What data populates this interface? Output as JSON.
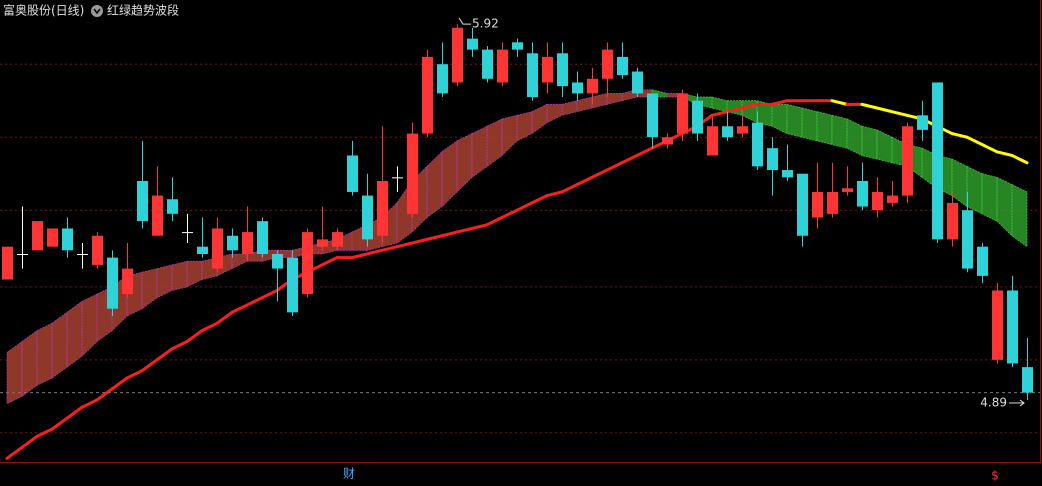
{
  "chart_data": {
    "type": "candlestick",
    "title": "富奥股份(日线)",
    "indicator": "红绿趋势波段",
    "event_marks": [
      "财",
      "$"
    ],
    "ylim": [
      4.72,
      5.975
    ],
    "grid_lines": [
      5.81,
      5.61,
      5.41,
      5.2,
      5.0,
      4.8
    ],
    "grid_color": "#7a1414",
    "up_color": "#ff3434",
    "down_color": "#2fd2d6",
    "flat_color": "#ffffff",
    "open": [
      5.22,
      5.29,
      5.3,
      5.31,
      5.36,
      5.29,
      5.26,
      5.28,
      5.18,
      5.49,
      5.34,
      5.44,
      5.35,
      5.31,
      5.25,
      5.34,
      5.29,
      5.38,
      5.29,
      5.28,
      5.18,
      5.31,
      5.31,
      5.56,
      5.45,
      5.34,
      5.5,
      5.4,
      5.62,
      5.81,
      5.76,
      5.88,
      5.85,
      5.76,
      5.87,
      5.84,
      5.76,
      5.84,
      5.76,
      5.73,
      5.77,
      5.83,
      5.79,
      5.73,
      5.59,
      5.62,
      5.71,
      5.56,
      5.64,
      5.62,
      5.65,
      5.58,
      5.52,
      5.51,
      5.39,
      5.4,
      5.46,
      5.49,
      5.41,
      5.43,
      5.45,
      5.67,
      5.76,
      5.33,
      5.41,
      5.31,
      5.0,
      5.19,
      4.98
    ],
    "high": [
      5.31,
      5.42,
      5.38,
      5.36,
      5.39,
      5.32,
      5.35,
      5.3,
      5.32,
      5.6,
      5.53,
      5.5,
      5.4,
      5.39,
      5.39,
      5.36,
      5.42,
      5.39,
      5.3,
      5.3,
      5.36,
      5.42,
      5.36,
      5.6,
      5.51,
      5.64,
      5.53,
      5.65,
      5.85,
      5.87,
      5.92,
      5.91,
      5.86,
      5.87,
      5.88,
      5.87,
      5.87,
      5.87,
      5.79,
      5.8,
      5.87,
      5.87,
      5.8,
      5.73,
      5.62,
      5.74,
      5.73,
      5.67,
      5.68,
      5.68,
      5.68,
      5.61,
      5.59,
      5.51,
      5.54,
      5.54,
      5.53,
      5.54,
      5.5,
      5.49,
      5.65,
      5.71,
      5.76,
      5.46,
      5.46,
      5.32,
      5.21,
      5.23,
      5.06
    ],
    "low": [
      5.22,
      5.25,
      5.3,
      5.31,
      5.28,
      5.25,
      5.25,
      5.12,
      5.17,
      5.36,
      5.34,
      5.38,
      5.32,
      5.28,
      5.24,
      5.28,
      5.27,
      5.28,
      5.16,
      5.12,
      5.17,
      5.3,
      5.3,
      5.45,
      5.31,
      5.32,
      5.46,
      5.39,
      5.61,
      5.72,
      5.75,
      5.83,
      5.76,
      5.75,
      5.83,
      5.71,
      5.73,
      5.72,
      5.71,
      5.7,
      5.72,
      5.77,
      5.72,
      5.58,
      5.58,
      5.6,
      5.6,
      5.56,
      5.6,
      5.61,
      5.52,
      5.45,
      5.49,
      5.31,
      5.36,
      5.39,
      5.45,
      5.41,
      5.39,
      5.42,
      5.43,
      5.6,
      5.32,
      5.31,
      5.24,
      5.21,
      4.99,
      4.98,
      4.89
    ],
    "close": [
      5.31,
      5.29,
      5.38,
      5.36,
      5.3,
      5.29,
      5.34,
      5.14,
      5.25,
      5.38,
      5.45,
      5.4,
      5.35,
      5.29,
      5.36,
      5.3,
      5.35,
      5.29,
      5.25,
      5.13,
      5.35,
      5.33,
      5.35,
      5.46,
      5.33,
      5.49,
      5.5,
      5.62,
      5.83,
      5.73,
      5.91,
      5.85,
      5.77,
      5.85,
      5.85,
      5.72,
      5.83,
      5.75,
      5.73,
      5.77,
      5.85,
      5.78,
      5.73,
      5.61,
      5.61,
      5.73,
      5.62,
      5.64,
      5.61,
      5.64,
      5.53,
      5.52,
      5.5,
      5.34,
      5.46,
      5.46,
      5.47,
      5.42,
      5.46,
      5.45,
      5.64,
      5.63,
      5.33,
      5.43,
      5.25,
      5.23,
      5.19,
      4.99,
      4.91
    ],
    "trend_line": {
      "up_color": "#ff1e1e",
      "down_color": "#ffff00",
      "values": [
        4.73,
        4.76,
        4.79,
        4.81,
        4.84,
        4.87,
        4.89,
        4.92,
        4.95,
        4.97,
        5.0,
        5.03,
        5.05,
        5.08,
        5.1,
        5.13,
        5.15,
        5.17,
        5.19,
        5.22,
        5.24,
        5.26,
        5.28,
        5.28,
        5.29,
        5.3,
        5.31,
        5.32,
        5.33,
        5.34,
        5.35,
        5.36,
        5.37,
        5.39,
        5.41,
        5.43,
        5.45,
        5.46,
        5.48,
        5.5,
        5.52,
        5.54,
        5.56,
        5.58,
        5.6,
        5.62,
        5.64,
        5.67,
        5.68,
        5.69,
        5.7,
        5.7,
        5.71,
        5.71,
        5.71,
        5.71,
        5.7,
        5.7,
        5.69,
        5.68,
        5.67,
        5.66,
        5.64,
        5.62,
        5.61,
        5.59,
        5.57,
        5.56,
        5.54
      ]
    },
    "ribbon": {
      "up_color": "#a8412f",
      "down_color": "#2f9c2a",
      "upper": [
        5.02,
        5.05,
        5.08,
        5.1,
        5.13,
        5.16,
        5.18,
        5.2,
        5.23,
        5.24,
        5.25,
        5.26,
        5.27,
        5.27,
        5.28,
        5.29,
        5.29,
        5.3,
        5.3,
        5.3,
        5.31,
        5.32,
        5.33,
        5.35,
        5.37,
        5.39,
        5.43,
        5.49,
        5.53,
        5.57,
        5.6,
        5.62,
        5.64,
        5.66,
        5.67,
        5.68,
        5.7,
        5.7,
        5.71,
        5.72,
        5.73,
        5.73,
        5.74,
        5.74,
        5.73,
        5.73,
        5.72,
        5.72,
        5.71,
        5.71,
        5.71,
        5.7,
        5.7,
        5.69,
        5.68,
        5.67,
        5.66,
        5.64,
        5.63,
        5.61,
        5.59,
        5.58,
        5.56,
        5.55,
        5.53,
        5.51,
        5.5,
        5.48,
        5.46
      ],
      "lower": [
        4.88,
        4.9,
        4.93,
        4.95,
        4.98,
        5.01,
        5.05,
        5.08,
        5.12,
        5.14,
        5.17,
        5.19,
        5.2,
        5.22,
        5.23,
        5.25,
        5.27,
        5.27,
        5.28,
        5.28,
        5.29,
        5.29,
        5.3,
        5.3,
        5.3,
        5.31,
        5.32,
        5.35,
        5.39,
        5.42,
        5.46,
        5.5,
        5.53,
        5.56,
        5.6,
        5.62,
        5.65,
        5.67,
        5.68,
        5.69,
        5.7,
        5.71,
        5.72,
        5.72,
        5.72,
        5.72,
        5.7,
        5.69,
        5.68,
        5.67,
        5.65,
        5.64,
        5.62,
        5.61,
        5.6,
        5.59,
        5.58,
        5.56,
        5.55,
        5.54,
        5.53,
        5.5,
        5.47,
        5.45,
        5.42,
        5.4,
        5.38,
        5.34,
        5.31
      ]
    },
    "annotations": [
      {
        "label": "5.92",
        "value": 5.92,
        "kind": "high"
      },
      {
        "label": "4.89",
        "value": 4.89,
        "kind": "low"
      }
    ]
  }
}
